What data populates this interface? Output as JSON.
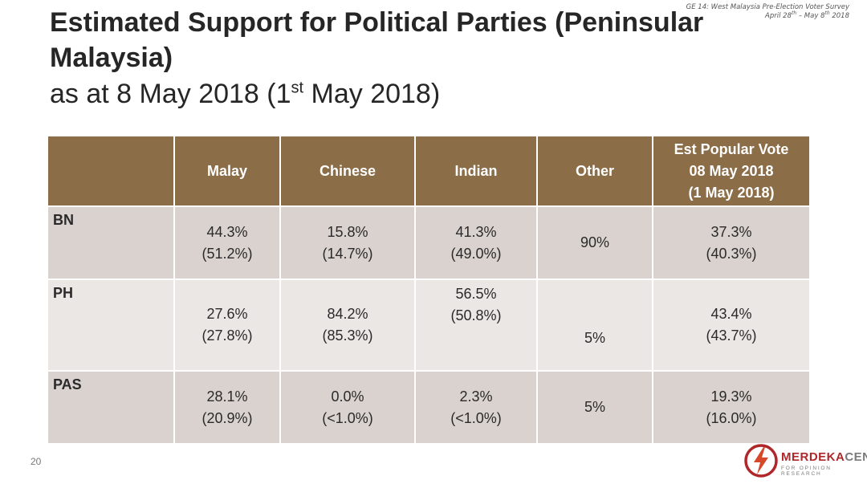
{
  "title": {
    "main": "Estimated Support for Political Parties (Peninsular Malaysia)",
    "sub_prefix": "as at 8 May 2018 (1",
    "sub_sup": "st",
    "sub_suffix": " May 2018)"
  },
  "survey_note": {
    "line1": "GE 14: West Malaysia Pre-Election Voter Survey",
    "line2_prefix": "April 28",
    "line2_sup1": "th",
    "line2_mid": " – May 8",
    "line2_sup2": "th",
    "line2_suffix": " 2018"
  },
  "table": {
    "headers": {
      "party": "",
      "malay": "Malay",
      "chinese": "Chinese",
      "indian": "Indian",
      "other": "Other",
      "popular_line1": "Est Popular Vote",
      "popular_line2": "08 May 2018",
      "popular_line3": "(1 May 2018)"
    },
    "rows": [
      {
        "party": "BN",
        "malay": [
          "44.3%",
          "(51.2%)"
        ],
        "chinese": [
          "15.8%",
          "(14.7%)"
        ],
        "indian": [
          "41.3%",
          "(49.0%)"
        ],
        "other": "90%",
        "popular": [
          "37.3%",
          "(40.3%)"
        ]
      },
      {
        "party": "PH",
        "malay": [
          "27.6%",
          "(27.8%)"
        ],
        "chinese": [
          "84.2%",
          "(85.3%)"
        ],
        "indian": [
          "56.5%",
          "(50.8%)"
        ],
        "other": "5%",
        "popular": [
          "43.4%",
          "(43.7%)"
        ]
      },
      {
        "party": "PAS",
        "malay": [
          "28.1%",
          "(20.9%)"
        ],
        "chinese": [
          "0.0%",
          "(<1.0%)"
        ],
        "indian": [
          "2.3%",
          "(<1.0%)"
        ],
        "other": "5%",
        "popular": [
          "19.3%",
          "(16.0%)"
        ]
      }
    ]
  },
  "page_number": "20",
  "logo": {
    "name_part1": "MERDEKA",
    "name_part2": "CENTER",
    "tagline": "FOR OPINION RESEARCH",
    "icon": "lightning-circle-icon"
  },
  "colors": {
    "header_bg": "#8b6d47",
    "row_dark": "#d9d2ce",
    "row_light": "#ebe7e5",
    "brand_red": "#b0272a"
  }
}
